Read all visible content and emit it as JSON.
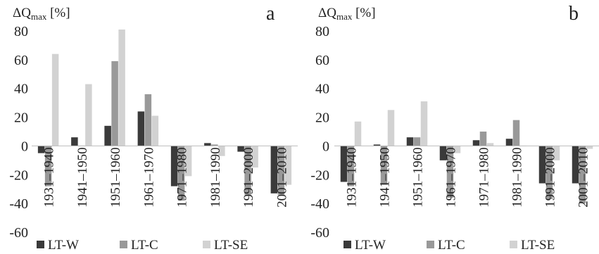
{
  "chart_data": [
    {
      "type": "bar",
      "panel_label": "a",
      "ylabel_main": "ΔQ",
      "ylabel_sub": "max",
      "ylabel_unit": " [%]",
      "ylim": [
        -60,
        80
      ],
      "yticks": [
        80,
        60,
        40,
        20,
        0,
        -20,
        -40,
        -60
      ],
      "grid": false,
      "legend_position": "bottom",
      "categories": [
        "1931–1940",
        "1941–1950",
        "1951–1960",
        "1961–1970",
        "1971–1980",
        "1981–1990",
        "1991–2000",
        "2001–2010"
      ],
      "series": [
        {
          "name": "LT-W",
          "color": "#3a3a3a",
          "values": [
            -5,
            6,
            14,
            24,
            -28,
            2,
            -4,
            -33
          ]
        },
        {
          "name": "LT-C",
          "color": "#999999",
          "values": [
            -28,
            0,
            59,
            36,
            -38,
            1,
            -34,
            -34
          ]
        },
        {
          "name": "LT-SE",
          "color": "#d2d2d2",
          "values": [
            64,
            43,
            81,
            21,
            -21,
            -7,
            -15,
            -27
          ]
        }
      ]
    },
    {
      "type": "bar",
      "panel_label": "b",
      "ylabel_main": "ΔQ",
      "ylabel_sub": "max",
      "ylabel_unit": " [%]",
      "ylim": [
        -60,
        80
      ],
      "yticks": [
        80,
        60,
        40,
        20,
        0,
        -20,
        -40,
        -60
      ],
      "grid": false,
      "legend_position": "bottom",
      "categories": [
        "1931–1940",
        "1941–1950",
        "1951–1960",
        "1961–1970",
        "1971–1980",
        "1981–1990",
        "1991–2000",
        "2001–2010"
      ],
      "series": [
        {
          "name": "LT-W",
          "color": "#3a3a3a",
          "values": [
            -25,
            1,
            6,
            -10,
            4,
            5,
            -26,
            -26
          ]
        },
        {
          "name": "LT-C",
          "color": "#999999",
          "values": [
            -28,
            -27,
            6,
            -36,
            10,
            18,
            -37,
            -40
          ]
        },
        {
          "name": "LT-SE",
          "color": "#d2d2d2",
          "values": [
            17,
            25,
            31,
            -5,
            2,
            0,
            -10,
            -2
          ]
        }
      ]
    }
  ]
}
